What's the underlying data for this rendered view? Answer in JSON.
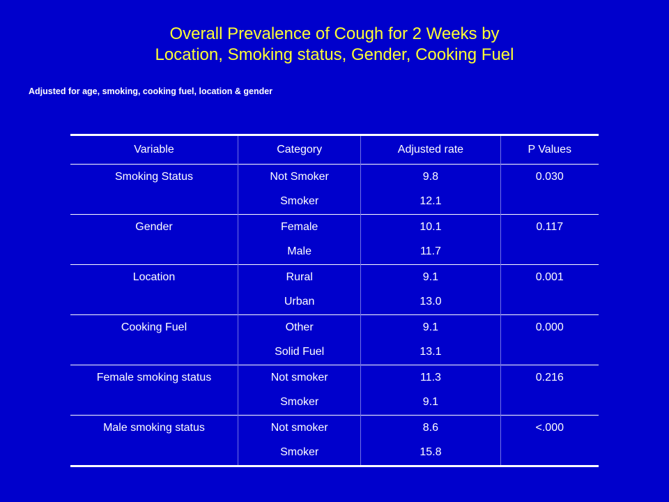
{
  "title": {
    "line1": "Overall Prevalence of Cough for 2 Weeks by",
    "line2": "Location, Smoking status, Gender, Cooking Fuel"
  },
  "subtitle": "Adjusted for age, smoking, cooking fuel, location & gender",
  "table": {
    "headers": [
      "Variable",
      "Category",
      "Adjusted rate",
      "P Values"
    ],
    "groups": [
      {
        "variable": "Smoking Status",
        "p_value": "0.030",
        "rows": [
          {
            "category": "Not Smoker",
            "rate": "9.8"
          },
          {
            "category": "Smoker",
            "rate": "12.1"
          }
        ]
      },
      {
        "variable": "Gender",
        "p_value": "0.117",
        "rows": [
          {
            "category": "Female",
            "rate": "10.1"
          },
          {
            "category": "Male",
            "rate": "11.7"
          }
        ]
      },
      {
        "variable": "Location",
        "p_value": "0.001",
        "rows": [
          {
            "category": "Rural",
            "rate": "9.1"
          },
          {
            "category": "Urban",
            "rate": "13.0"
          }
        ]
      },
      {
        "variable": "Cooking Fuel",
        "p_value": "0.000",
        "rows": [
          {
            "category": "Other",
            "rate": "9.1"
          },
          {
            "category": "Solid Fuel",
            "rate": "13.1"
          }
        ]
      },
      {
        "variable": "Female smoking status",
        "p_value": "0.216",
        "rows": [
          {
            "category": "Not smoker",
            "rate": "11.3"
          },
          {
            "category": "Smoker",
            "rate": "9.1"
          }
        ]
      },
      {
        "variable": "Male smoking status",
        "p_value": "<.000",
        "rows": [
          {
            "category": "Not smoker",
            "rate": "8.6"
          },
          {
            "category": "Smoker",
            "rate": "15.8"
          }
        ]
      }
    ]
  },
  "colors": {
    "background": "#0000cc",
    "title": "#ffff33",
    "text": "#ffffff"
  }
}
